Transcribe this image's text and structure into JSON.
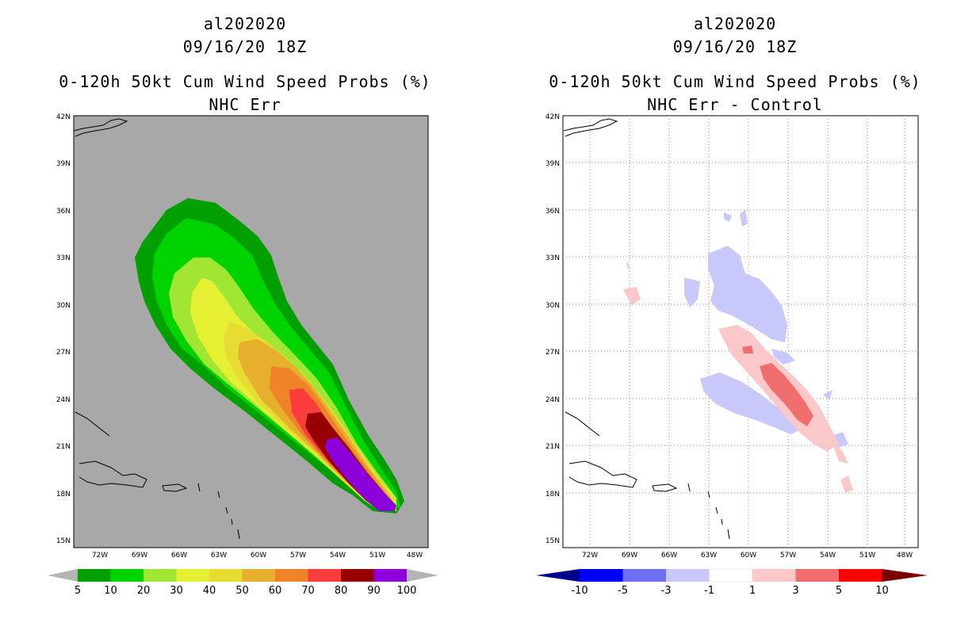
{
  "left_panel": {
    "title": {
      "storm": "al202020",
      "datetime": "09/16/20 18Z",
      "product": "0-120h 50kt Cum Wind Speed Probs (%)",
      "subtitle": "NHC Err"
    },
    "map": {
      "lat_labels": [
        "42N",
        "39N",
        "36N",
        "33N",
        "30N",
        "27N",
        "24N",
        "21N",
        "18N",
        "15N"
      ],
      "lon_labels": [
        "72W",
        "69W",
        "66W",
        "63W",
        "60W",
        "57W",
        "54W",
        "51W",
        "48W"
      ],
      "background_color": "#a8a8a8"
    },
    "colorbar": {
      "labels": [
        "5",
        "10",
        "20",
        "30",
        "40",
        "50",
        "60",
        "70",
        "80",
        "90",
        "100"
      ],
      "colors": [
        "#00a000",
        "#00d400",
        "#a0e632",
        "#e6f032",
        "#e6dc32",
        "#e6af2d",
        "#f08228",
        "#fa3c3c",
        "#960000",
        "#8c00dc"
      ],
      "under_color": "#b4b4b4",
      "over_color": "#b4b4b4"
    }
  },
  "right_panel": {
    "title": {
      "storm": "al202020",
      "datetime": "09/16/20 18Z",
      "product": "0-120h 50kt Cum Wind Speed Probs (%)",
      "subtitle": "NHC Err - Control"
    },
    "map": {
      "lat_labels": [
        "42N",
        "39N",
        "36N",
        "33N",
        "30N",
        "27N",
        "24N",
        "21N",
        "18N",
        "15N"
      ],
      "lon_labels": [
        "72W",
        "69W",
        "66W",
        "63W",
        "60W",
        "57W",
        "54W",
        "51W",
        "48W"
      ],
      "background_color": "#ffffff"
    },
    "colorbar": {
      "labels": [
        "-10",
        "-5",
        "-3",
        "-1",
        "1",
        "3",
        "5",
        "10"
      ],
      "colors": [
        "#0000ff",
        "#6e6ef0",
        "#c8c8fa",
        "#ffffff",
        "#fac8c8",
        "#f06e6e",
        "#ff0000"
      ],
      "under_color": "#00008c",
      "over_color": "#7a0000"
    }
  }
}
